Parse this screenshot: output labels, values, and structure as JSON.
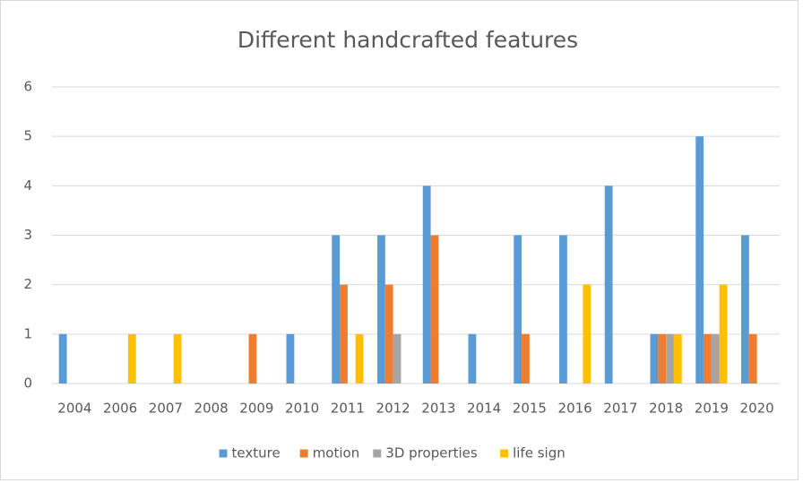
{
  "chart_data": {
    "type": "bar",
    "title": "Different handcrafted features",
    "categories": [
      "2004",
      "2006",
      "2007",
      "2008",
      "2009",
      "2010",
      "2011",
      "2012",
      "2013",
      "2014",
      "2015",
      "2016",
      "2017",
      "2018",
      "2019",
      "2020"
    ],
    "series": [
      {
        "name": "texture",
        "color": "#5b9bd5",
        "values": [
          1,
          0,
          0,
          0,
          0,
          1,
          3,
          3,
          4,
          1,
          3,
          3,
          4,
          1,
          5,
          3
        ]
      },
      {
        "name": "motion",
        "color": "#ed7d31",
        "values": [
          0,
          0,
          0,
          0,
          1,
          0,
          2,
          2,
          3,
          0,
          1,
          0,
          0,
          1,
          1,
          1
        ]
      },
      {
        "name": "3D properties",
        "color": "#a5a5a5",
        "values": [
          0,
          0,
          0,
          0,
          0,
          0,
          0,
          1,
          0,
          0,
          0,
          0,
          0,
          1,
          1,
          0
        ]
      },
      {
        "name": "life sign",
        "color": "#ffc000",
        "values": [
          0,
          1,
          1,
          0,
          0,
          0,
          1,
          0,
          0,
          0,
          0,
          2,
          0,
          1,
          2,
          0
        ]
      }
    ],
    "ylim": [
      0,
      6
    ],
    "yticks": [
      0,
      1,
      2,
      3,
      4,
      5,
      6
    ],
    "grid": true,
    "legend": "bottom"
  }
}
